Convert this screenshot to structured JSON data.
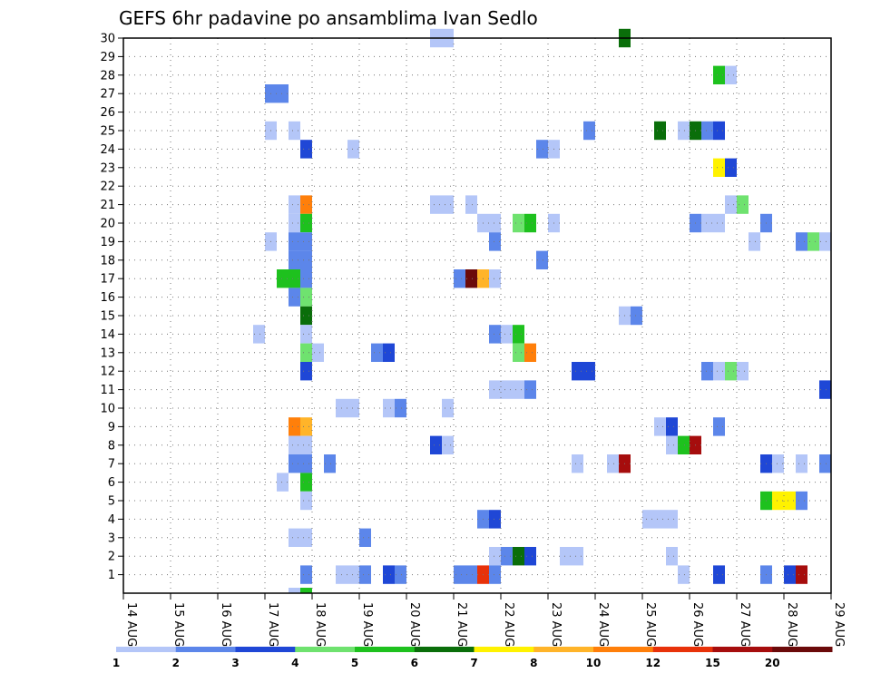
{
  "chart_data": {
    "type": "heatmap",
    "title": "GEFS 6hr padavine po ansamblima Ivan Sedlo",
    "x_tick_labels": [
      "14 AUG",
      "15 AUG",
      "16 AUG",
      "17 AUG",
      "18 AUG",
      "19 AUG",
      "20 AUG",
      "21 AUG",
      "22 AUG",
      "23 AUG",
      "24 AUG",
      "25 AUG",
      "26 AUG",
      "27 AUG",
      "28 AUG",
      "29 AUG"
    ],
    "x_range_days": [
      14,
      29
    ],
    "y_tick_labels": [
      "1",
      "2",
      "3",
      "4",
      "5",
      "6",
      "7",
      "8",
      "9",
      "10",
      "11",
      "12",
      "13",
      "14",
      "15",
      "16",
      "17",
      "18",
      "19",
      "20",
      "21",
      "22",
      "23",
      "24",
      "25",
      "26",
      "27",
      "28",
      "29",
      "30"
    ],
    "y_range": [
      0,
      30
    ],
    "grid": true,
    "colorbar": {
      "labels": [
        "1",
        "2",
        "3",
        "4",
        "5",
        "6",
        "7",
        "8",
        "10",
        "12",
        "15",
        "20"
      ],
      "colors": [
        "#b4c6f8",
        "#5c86ea",
        "#1f47d6",
        "#6fe26f",
        "#1ec11e",
        "#0a6e0a",
        "#fff200",
        "#ffb429",
        "#ff7f0a",
        "#e8320a",
        "#a60d0d",
        "#6b0a0a"
      ]
    },
    "cells": [
      {
        "m": 30,
        "t": 20.5,
        "n": 2,
        "c": 0
      },
      {
        "m": 30,
        "t": 24.5,
        "n": 1,
        "c": 5
      },
      {
        "m": 28,
        "t": 26.5,
        "n": 1,
        "c": 4
      },
      {
        "m": 28,
        "t": 26.75,
        "n": 1,
        "c": 0
      },
      {
        "m": 27,
        "t": 17.0,
        "n": 2,
        "c": 1
      },
      {
        "m": 25,
        "t": 17.0,
        "n": 1,
        "c": 0
      },
      {
        "m": 25,
        "t": 17.5,
        "n": 1,
        "c": 0
      },
      {
        "m": 25,
        "t": 23.75,
        "n": 1,
        "c": 1
      },
      {
        "m": 25,
        "t": 25.25,
        "n": 1,
        "c": 5
      },
      {
        "m": 25,
        "t": 25.75,
        "n": 1,
        "c": 0
      },
      {
        "m": 25,
        "t": 26.0,
        "n": 1,
        "c": 5
      },
      {
        "m": 25,
        "t": 26.25,
        "n": 1,
        "c": 1
      },
      {
        "m": 25,
        "t": 26.5,
        "n": 1,
        "c": 2
      },
      {
        "m": 24,
        "t": 17.75,
        "n": 1,
        "c": 2
      },
      {
        "m": 24,
        "t": 18.75,
        "n": 1,
        "c": 0
      },
      {
        "m": 24,
        "t": 22.75,
        "n": 1,
        "c": 1
      },
      {
        "m": 24,
        "t": 23.0,
        "n": 1,
        "c": 0
      },
      {
        "m": 23,
        "t": 26.5,
        "n": 1,
        "c": 6
      },
      {
        "m": 23,
        "t": 26.75,
        "n": 1,
        "c": 2
      },
      {
        "m": 21,
        "t": 17.5,
        "n": 1,
        "c": 0
      },
      {
        "m": 21,
        "t": 17.75,
        "n": 1,
        "c": 8
      },
      {
        "m": 21,
        "t": 20.5,
        "n": 2,
        "c": 0
      },
      {
        "m": 21,
        "t": 21.25,
        "n": 1,
        "c": 0
      },
      {
        "m": 21,
        "t": 26.75,
        "n": 1,
        "c": 0
      },
      {
        "m": 21,
        "t": 27.0,
        "n": 1,
        "c": 3
      },
      {
        "m": 20,
        "t": 17.5,
        "n": 1,
        "c": 0
      },
      {
        "m": 20,
        "t": 17.75,
        "n": 1,
        "c": 4
      },
      {
        "m": 20,
        "t": 21.5,
        "n": 2,
        "c": 0
      },
      {
        "m": 20,
        "t": 22.25,
        "n": 1,
        "c": 3
      },
      {
        "m": 20,
        "t": 22.5,
        "n": 1,
        "c": 4
      },
      {
        "m": 20,
        "t": 23.0,
        "n": 1,
        "c": 0
      },
      {
        "m": 20,
        "t": 26.0,
        "n": 1,
        "c": 1
      },
      {
        "m": 20,
        "t": 26.25,
        "n": 2,
        "c": 0
      },
      {
        "m": 20,
        "t": 27.5,
        "n": 1,
        "c": 1
      },
      {
        "m": 19,
        "t": 17.0,
        "n": 1,
        "c": 0
      },
      {
        "m": 19,
        "t": 17.5,
        "n": 1,
        "c": 1
      },
      {
        "m": 19,
        "t": 17.75,
        "n": 1,
        "c": 1
      },
      {
        "m": 19,
        "t": 21.75,
        "n": 1,
        "c": 1
      },
      {
        "m": 19,
        "t": 27.25,
        "n": 1,
        "c": 0
      },
      {
        "m": 19,
        "t": 28.25,
        "n": 1,
        "c": 1
      },
      {
        "m": 19,
        "t": 28.5,
        "n": 1,
        "c": 3
      },
      {
        "m": 19,
        "t": 28.75,
        "n": 1,
        "c": 0
      },
      {
        "m": 18,
        "t": 17.5,
        "n": 1,
        "c": 1
      },
      {
        "m": 18,
        "t": 17.75,
        "n": 1,
        "c": 1
      },
      {
        "m": 18,
        "t": 22.75,
        "n": 1,
        "c": 1
      },
      {
        "m": 17,
        "t": 17.25,
        "n": 2,
        "c": 4
      },
      {
        "m": 17,
        "t": 17.75,
        "n": 1,
        "c": 1
      },
      {
        "m": 17,
        "t": 21.0,
        "n": 1,
        "c": 1
      },
      {
        "m": 17,
        "t": 21.25,
        "n": 1,
        "c": 11
      },
      {
        "m": 17,
        "t": 21.5,
        "n": 1,
        "c": 7
      },
      {
        "m": 17,
        "t": 21.75,
        "n": 1,
        "c": 0
      },
      {
        "m": 16,
        "t": 17.5,
        "n": 1,
        "c": 1
      },
      {
        "m": 16,
        "t": 17.75,
        "n": 1,
        "c": 3
      },
      {
        "m": 15,
        "t": 17.75,
        "n": 1,
        "c": 5
      },
      {
        "m": 15,
        "t": 24.5,
        "n": 1,
        "c": 0
      },
      {
        "m": 15,
        "t": 24.75,
        "n": 1,
        "c": 1
      },
      {
        "m": 14,
        "t": 16.75,
        "n": 1,
        "c": 0
      },
      {
        "m": 14,
        "t": 17.75,
        "n": 1,
        "c": 0
      },
      {
        "m": 14,
        "t": 21.75,
        "n": 1,
        "c": 1
      },
      {
        "m": 14,
        "t": 22.0,
        "n": 1,
        "c": 0
      },
      {
        "m": 14,
        "t": 22.25,
        "n": 1,
        "c": 4
      },
      {
        "m": 13,
        "t": 17.75,
        "n": 1,
        "c": 3
      },
      {
        "m": 13,
        "t": 18.0,
        "n": 1,
        "c": 0
      },
      {
        "m": 13,
        "t": 19.25,
        "n": 1,
        "c": 1
      },
      {
        "m": 13,
        "t": 19.5,
        "n": 1,
        "c": 2
      },
      {
        "m": 13,
        "t": 22.25,
        "n": 1,
        "c": 3
      },
      {
        "m": 13,
        "t": 22.5,
        "n": 1,
        "c": 8
      },
      {
        "m": 12,
        "t": 17.75,
        "n": 1,
        "c": 2
      },
      {
        "m": 12,
        "t": 23.5,
        "n": 2,
        "c": 2
      },
      {
        "m": 12,
        "t": 26.25,
        "n": 1,
        "c": 1
      },
      {
        "m": 12,
        "t": 26.5,
        "n": 1,
        "c": 0
      },
      {
        "m": 12,
        "t": 26.75,
        "n": 1,
        "c": 3
      },
      {
        "m": 12,
        "t": 27.0,
        "n": 1,
        "c": 0
      },
      {
        "m": 11,
        "t": 21.75,
        "n": 3,
        "c": 0
      },
      {
        "m": 11,
        "t": 22.5,
        "n": 1,
        "c": 1
      },
      {
        "m": 11,
        "t": 28.75,
        "n": 1,
        "c": 2
      },
      {
        "m": 10,
        "t": 18.5,
        "n": 2,
        "c": 0
      },
      {
        "m": 10,
        "t": 19.5,
        "n": 1,
        "c": 0
      },
      {
        "m": 10,
        "t": 19.75,
        "n": 1,
        "c": 1
      },
      {
        "m": 10,
        "t": 20.75,
        "n": 1,
        "c": 0
      },
      {
        "m": 9,
        "t": 17.5,
        "n": 1,
        "c": 8
      },
      {
        "m": 9,
        "t": 17.75,
        "n": 1,
        "c": 7
      },
      {
        "m": 9,
        "t": 25.25,
        "n": 1,
        "c": 0
      },
      {
        "m": 9,
        "t": 25.5,
        "n": 1,
        "c": 2
      },
      {
        "m": 9,
        "t": 26.5,
        "n": 1,
        "c": 1
      },
      {
        "m": 8,
        "t": 17.5,
        "n": 2,
        "c": 0
      },
      {
        "m": 8,
        "t": 20.5,
        "n": 1,
        "c": 2
      },
      {
        "m": 8,
        "t": 20.75,
        "n": 1,
        "c": 0
      },
      {
        "m": 8,
        "t": 25.5,
        "n": 1,
        "c": 0
      },
      {
        "m": 8,
        "t": 25.75,
        "n": 1,
        "c": 4
      },
      {
        "m": 8,
        "t": 26.0,
        "n": 1,
        "c": 10
      },
      {
        "m": 7,
        "t": 17.5,
        "n": 2,
        "c": 1
      },
      {
        "m": 7,
        "t": 18.25,
        "n": 1,
        "c": 1
      },
      {
        "m": 7,
        "t": 23.5,
        "n": 1,
        "c": 0
      },
      {
        "m": 7,
        "t": 24.25,
        "n": 1,
        "c": 0
      },
      {
        "m": 7,
        "t": 24.5,
        "n": 1,
        "c": 10
      },
      {
        "m": 7,
        "t": 27.5,
        "n": 1,
        "c": 2
      },
      {
        "m": 7,
        "t": 27.75,
        "n": 1,
        "c": 0
      },
      {
        "m": 7,
        "t": 28.25,
        "n": 1,
        "c": 0
      },
      {
        "m": 7,
        "t": 28.75,
        "n": 1,
        "c": 1
      },
      {
        "m": 6,
        "t": 17.25,
        "n": 1,
        "c": 0
      },
      {
        "m": 6,
        "t": 17.75,
        "n": 1,
        "c": 4
      },
      {
        "m": 5,
        "t": 17.75,
        "n": 1,
        "c": 0
      },
      {
        "m": 5,
        "t": 27.5,
        "n": 1,
        "c": 4
      },
      {
        "m": 5,
        "t": 27.75,
        "n": 2,
        "c": 6
      },
      {
        "m": 5,
        "t": 28.25,
        "n": 1,
        "c": 1
      },
      {
        "m": 4,
        "t": 21.5,
        "n": 1,
        "c": 1
      },
      {
        "m": 4,
        "t": 21.75,
        "n": 1,
        "c": 2
      },
      {
        "m": 4,
        "t": 25.0,
        "n": 3,
        "c": 0
      },
      {
        "m": 3,
        "t": 17.5,
        "n": 2,
        "c": 0
      },
      {
        "m": 3,
        "t": 19.0,
        "n": 1,
        "c": 1
      },
      {
        "m": 2,
        "t": 21.75,
        "n": 1,
        "c": 0
      },
      {
        "m": 2,
        "t": 22.0,
        "n": 1,
        "c": 1
      },
      {
        "m": 2,
        "t": 22.25,
        "n": 1,
        "c": 5
      },
      {
        "m": 2,
        "t": 22.5,
        "n": 1,
        "c": 2
      },
      {
        "m": 2,
        "t": 23.25,
        "n": 2,
        "c": 0
      },
      {
        "m": 2,
        "t": 25.5,
        "n": 1,
        "c": 0
      },
      {
        "m": 1,
        "t": 17.75,
        "n": 1,
        "c": 1
      },
      {
        "m": 1,
        "t": 18.5,
        "n": 2,
        "c": 0
      },
      {
        "m": 1,
        "t": 19.0,
        "n": 1,
        "c": 1
      },
      {
        "m": 1,
        "t": 19.5,
        "n": 1,
        "c": 2
      },
      {
        "m": 1,
        "t": 19.75,
        "n": 1,
        "c": 1
      },
      {
        "m": 1,
        "t": 21.0,
        "n": 2,
        "c": 1
      },
      {
        "m": 1,
        "t": 21.5,
        "n": 1,
        "c": 9
      },
      {
        "m": 1,
        "t": 21.75,
        "n": 1,
        "c": 1
      },
      {
        "m": 1,
        "t": 25.75,
        "n": 1,
        "c": 0
      },
      {
        "m": 1,
        "t": 26.5,
        "n": 1,
        "c": 2
      },
      {
        "m": 1,
        "t": 27.5,
        "n": 1,
        "c": 1
      },
      {
        "m": 1,
        "t": 28.0,
        "n": 1,
        "c": 2
      },
      {
        "m": 1,
        "t": 28.25,
        "n": 1,
        "c": 10
      },
      {
        "m": 0,
        "t": 17.5,
        "n": 1,
        "c": 0
      },
      {
        "m": 0,
        "t": 17.75,
        "n": 1,
        "c": 4
      }
    ]
  }
}
